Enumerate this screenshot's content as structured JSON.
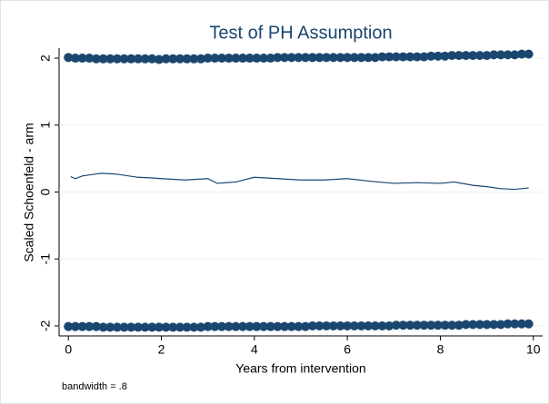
{
  "chart_data": {
    "type": "scatter",
    "title": "Test of PH Assumption",
    "x_label": "Years from intervention",
    "y_label": "Scaled Schoenfeld - arm",
    "note": "bandwidth = .8",
    "xlim": [
      -0.2,
      10.2
    ],
    "xticks": [
      0,
      2,
      4,
      6,
      8,
      10
    ],
    "ylim": [
      -2.15,
      2.15
    ],
    "yticks": [
      -2,
      -1,
      0,
      1,
      2
    ],
    "grid": true,
    "series": [
      {
        "kind": "points",
        "color": "#1a476f",
        "x": [
          0,
          0.15,
          0.3,
          0.45,
          0.6,
          0.75,
          0.9,
          1.05,
          1.2,
          1.35,
          1.5,
          1.65,
          1.8,
          1.95,
          2.1,
          2.25,
          2.4,
          2.55,
          2.7,
          2.85,
          3,
          3.15,
          3.3,
          3.45,
          3.6,
          3.75,
          3.9,
          4.05,
          4.2,
          4.35,
          4.5,
          4.65,
          4.8,
          4.95,
          5.1,
          5.25,
          5.4,
          5.55,
          5.7,
          5.85,
          6,
          6.15,
          6.3,
          6.45,
          6.6,
          6.75,
          6.9,
          7.05,
          7.2,
          7.35,
          7.5,
          7.65,
          7.8,
          7.95,
          8.1,
          8.25,
          8.4,
          8.55,
          8.7,
          8.85,
          9,
          9.15,
          9.3,
          9.45,
          9.6,
          9.75,
          9.9
        ],
        "values": [
          2.01,
          2.0,
          2.0,
          2.0,
          1.99,
          1.99,
          1.99,
          1.99,
          1.99,
          1.99,
          1.99,
          1.99,
          1.99,
          1.98,
          1.99,
          1.99,
          1.99,
          1.99,
          1.99,
          1.99,
          2.0,
          2.0,
          2.0,
          2.0,
          2.0,
          2.0,
          2.0,
          2.0,
          2.0,
          2.0,
          2.01,
          2.01,
          2.01,
          2.01,
          2.01,
          2.01,
          2.01,
          2.01,
          2.01,
          2.01,
          2.01,
          2.01,
          2.01,
          2.01,
          2.01,
          2.02,
          2.02,
          2.02,
          2.02,
          2.02,
          2.02,
          2.02,
          2.03,
          2.03,
          2.03,
          2.04,
          2.04,
          2.04,
          2.04,
          2.04,
          2.04,
          2.05,
          2.05,
          2.05,
          2.05,
          2.06,
          2.06
        ]
      },
      {
        "kind": "points",
        "color": "#1a476f",
        "x": [
          0,
          0.15,
          0.3,
          0.45,
          0.6,
          0.75,
          0.9,
          1.05,
          1.2,
          1.35,
          1.5,
          1.65,
          1.8,
          1.95,
          2.1,
          2.25,
          2.4,
          2.55,
          2.7,
          2.85,
          3,
          3.15,
          3.3,
          3.45,
          3.6,
          3.75,
          3.9,
          4.05,
          4.2,
          4.35,
          4.5,
          4.65,
          4.8,
          4.95,
          5.1,
          5.25,
          5.4,
          5.55,
          5.7,
          5.85,
          6,
          6.15,
          6.3,
          6.45,
          6.6,
          6.75,
          6.9,
          7.05,
          7.2,
          7.35,
          7.5,
          7.65,
          7.8,
          7.95,
          8.1,
          8.25,
          8.4,
          8.55,
          8.7,
          8.85,
          9,
          9.15,
          9.3,
          9.45,
          9.6,
          9.75,
          9.9
        ],
        "values": [
          -2.01,
          -2.01,
          -2.01,
          -2.01,
          -2.01,
          -2.02,
          -2.02,
          -2.02,
          -2.02,
          -2.02,
          -2.02,
          -2.02,
          -2.02,
          -2.02,
          -2.02,
          -2.02,
          -2.02,
          -2.02,
          -2.02,
          -2.02,
          -2.01,
          -2.01,
          -2.01,
          -2.01,
          -2.01,
          -2.01,
          -2.01,
          -2.01,
          -2.01,
          -2.01,
          -2.01,
          -2.01,
          -2.01,
          -2.01,
          -2.01,
          -2.0,
          -2.0,
          -2.0,
          -2.0,
          -2.0,
          -2.0,
          -2.0,
          -2.0,
          -2.0,
          -2.0,
          -2.0,
          -2.0,
          -1.99,
          -1.99,
          -1.99,
          -1.99,
          -1.99,
          -1.99,
          -1.99,
          -1.99,
          -1.99,
          -1.99,
          -1.98,
          -1.98,
          -1.98,
          -1.98,
          -1.98,
          -1.98,
          -1.97,
          -1.97,
          -1.97,
          -1.97
        ]
      },
      {
        "kind": "line",
        "color": "#1a476f",
        "x": [
          0.05,
          0.15,
          0.3,
          0.5,
          0.7,
          1.0,
          1.2,
          1.5,
          1.8,
          2.0,
          2.5,
          3.0,
          3.2,
          3.6,
          4.0,
          4.5,
          5.0,
          5.5,
          6.0,
          6.5,
          7.0,
          7.5,
          8.0,
          8.3,
          8.7,
          9.0,
          9.3,
          9.6,
          9.9
        ],
        "values": [
          0.23,
          0.2,
          0.24,
          0.26,
          0.28,
          0.27,
          0.25,
          0.22,
          0.21,
          0.2,
          0.18,
          0.2,
          0.13,
          0.15,
          0.22,
          0.2,
          0.18,
          0.18,
          0.2,
          0.16,
          0.13,
          0.14,
          0.13,
          0.15,
          0.1,
          0.08,
          0.05,
          0.04,
          0.06
        ]
      }
    ]
  }
}
